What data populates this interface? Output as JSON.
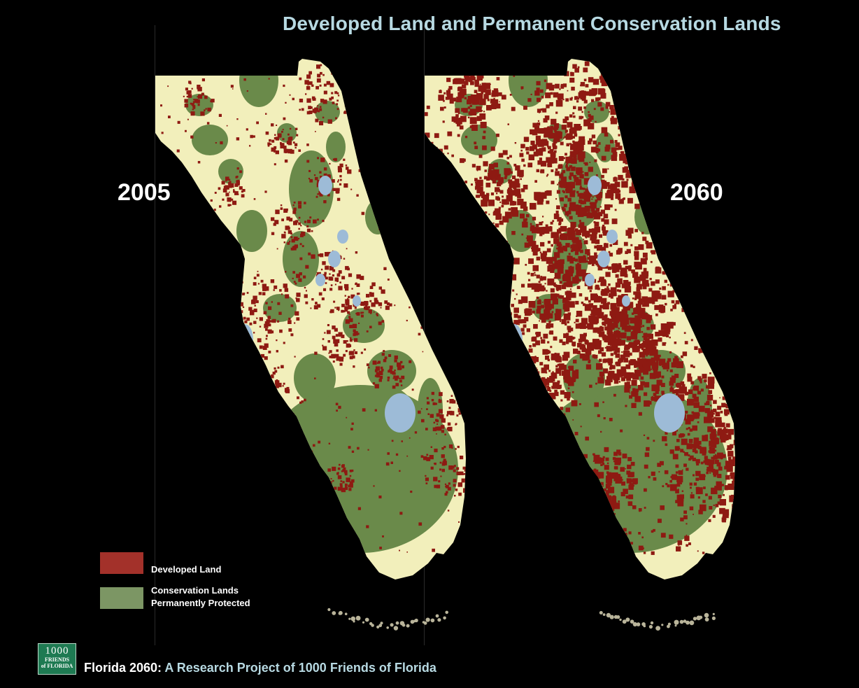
{
  "title": "Developed Land and Permanent Conservation Lands",
  "maps": [
    {
      "year": "2005",
      "development_level": 0.3
    },
    {
      "year": "2060",
      "development_level": 1.0
    }
  ],
  "legend": [
    {
      "label": "Developed Land",
      "color": "#a3312a"
    },
    {
      "label_line1": "Conservation Lands",
      "label_line2": "Permanently Protected",
      "color": "#7c9664"
    }
  ],
  "colors": {
    "land": "#f2efbb",
    "developed": "#8e1a12",
    "conservation": "#6a8a4a",
    "water": "#9dbbd7",
    "background": "#000000",
    "title": "#b7d9e2"
  },
  "footer": {
    "lead": "Florida 2060:",
    "rest": " A Research Project of 1000 Friends of Florida"
  },
  "logo": {
    "number": "1000",
    "line1": "FRIENDS",
    "line2": "of FLORIDA"
  }
}
